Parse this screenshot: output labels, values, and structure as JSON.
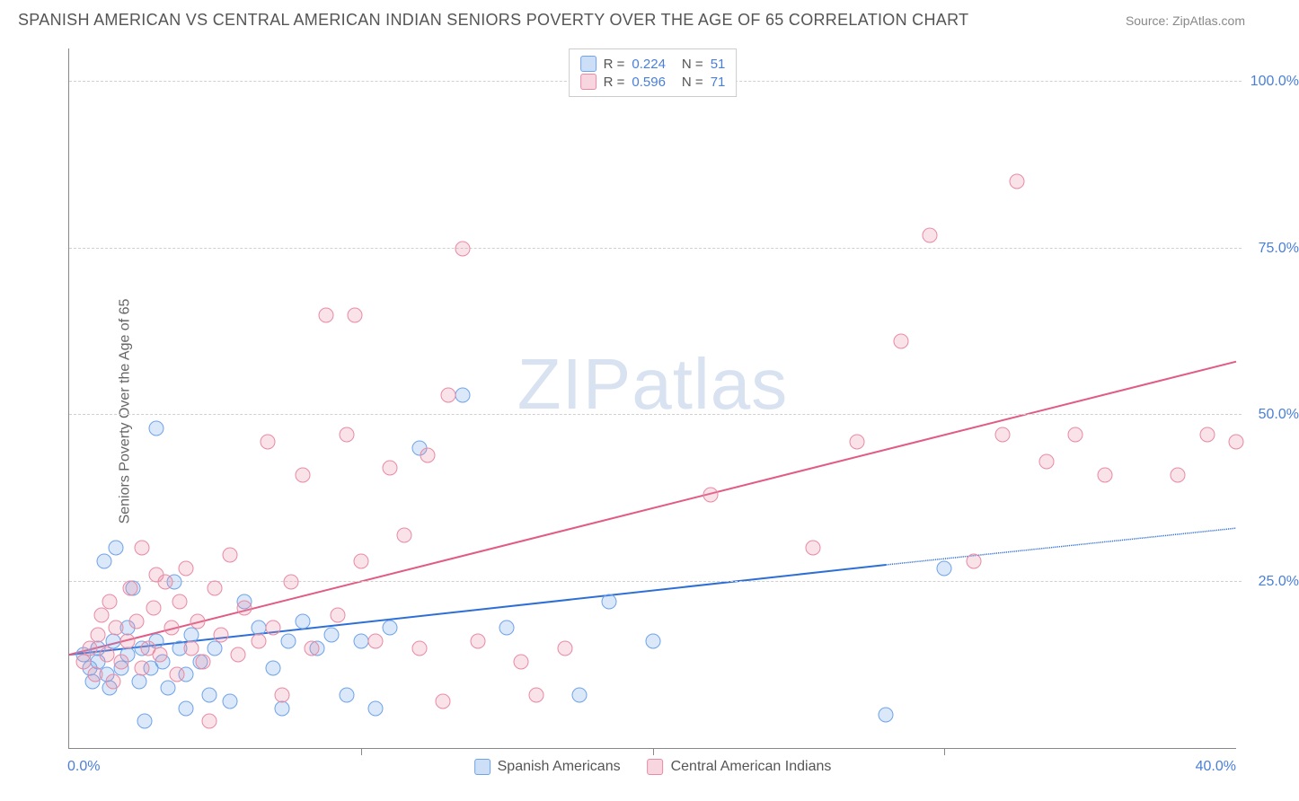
{
  "header": {
    "title": "SPANISH AMERICAN VS CENTRAL AMERICAN INDIAN SENIORS POVERTY OVER THE AGE OF 65 CORRELATION CHART",
    "source": "Source: ZipAtlas.com"
  },
  "chart": {
    "type": "scatter",
    "watermark": "ZIPatlas",
    "y_axis_label": "Seniors Poverty Over the Age of 65",
    "xlim": [
      0,
      40
    ],
    "ylim": [
      0,
      105
    ],
    "xtick_positions": [
      0,
      10,
      20,
      30,
      40
    ],
    "xtick_labels": [
      "0.0%",
      "",
      "",
      "",
      "40.0%"
    ],
    "ytick_positions": [
      25,
      50,
      75,
      100
    ],
    "ytick_labels": [
      "25.0%",
      "50.0%",
      "75.0%",
      "100.0%"
    ],
    "grid_color": "#d0d0d0",
    "background_color": "#ffffff",
    "series": [
      {
        "name": "Spanish Americans",
        "color_fill": "rgba(111,163,232,0.25)",
        "color_stroke": "#6fa3e8",
        "trend_color": "#2e6fd6",
        "R": "0.224",
        "N": "51",
        "trend": {
          "x0": 0,
          "y0": 14,
          "x_solid_end": 28,
          "y_solid_end": 27.5,
          "x1": 40,
          "y1": 33
        },
        "points": [
          [
            0.5,
            14
          ],
          [
            0.7,
            12
          ],
          [
            0.8,
            10
          ],
          [
            1.0,
            15
          ],
          [
            1.0,
            13
          ],
          [
            1.2,
            28
          ],
          [
            1.3,
            11
          ],
          [
            1.4,
            9
          ],
          [
            1.5,
            16
          ],
          [
            1.6,
            30
          ],
          [
            1.8,
            12
          ],
          [
            2.0,
            14
          ],
          [
            2.0,
            18
          ],
          [
            2.2,
            24
          ],
          [
            2.4,
            10
          ],
          [
            2.5,
            15
          ],
          [
            2.6,
            4
          ],
          [
            2.8,
            12
          ],
          [
            3.0,
            48
          ],
          [
            3.0,
            16
          ],
          [
            3.2,
            13
          ],
          [
            3.4,
            9
          ],
          [
            3.6,
            25
          ],
          [
            3.8,
            15
          ],
          [
            4.0,
            11
          ],
          [
            4.0,
            6
          ],
          [
            4.2,
            17
          ],
          [
            4.5,
            13
          ],
          [
            4.8,
            8
          ],
          [
            5.0,
            15
          ],
          [
            5.5,
            7
          ],
          [
            6.0,
            22
          ],
          [
            6.5,
            18
          ],
          [
            7.0,
            12
          ],
          [
            7.3,
            6
          ],
          [
            7.5,
            16
          ],
          [
            8.0,
            19
          ],
          [
            8.5,
            15
          ],
          [
            9.0,
            17
          ],
          [
            9.5,
            8
          ],
          [
            10.0,
            16
          ],
          [
            10.5,
            6
          ],
          [
            11.0,
            18
          ],
          [
            12.0,
            45
          ],
          [
            13.5,
            53
          ],
          [
            15.0,
            18
          ],
          [
            17.5,
            8
          ],
          [
            18.5,
            22
          ],
          [
            20.0,
            16
          ],
          [
            28.0,
            5
          ],
          [
            30.0,
            27
          ]
        ]
      },
      {
        "name": "Central American Indians",
        "color_fill": "rgba(232,138,165,0.25)",
        "color_stroke": "#e88aa5",
        "trend_color": "#e15b84",
        "R": "0.596",
        "N": "71",
        "trend": {
          "x0": 0,
          "y0": 14,
          "x_solid_end": 40,
          "y_solid_end": 58,
          "x1": 40,
          "y1": 58
        },
        "points": [
          [
            0.5,
            13
          ],
          [
            0.7,
            15
          ],
          [
            0.9,
            11
          ],
          [
            1.0,
            17
          ],
          [
            1.1,
            20
          ],
          [
            1.3,
            14
          ],
          [
            1.4,
            22
          ],
          [
            1.5,
            10
          ],
          [
            1.6,
            18
          ],
          [
            1.8,
            13
          ],
          [
            2.0,
            16
          ],
          [
            2.1,
            24
          ],
          [
            2.3,
            19
          ],
          [
            2.5,
            12
          ],
          [
            2.5,
            30
          ],
          [
            2.7,
            15
          ],
          [
            2.9,
            21
          ],
          [
            3.0,
            26
          ],
          [
            3.1,
            14
          ],
          [
            3.3,
            25
          ],
          [
            3.5,
            18
          ],
          [
            3.7,
            11
          ],
          [
            3.8,
            22
          ],
          [
            4.0,
            27
          ],
          [
            4.2,
            15
          ],
          [
            4.4,
            19
          ],
          [
            4.6,
            13
          ],
          [
            4.8,
            4
          ],
          [
            5.0,
            24
          ],
          [
            5.2,
            17
          ],
          [
            5.5,
            29
          ],
          [
            5.8,
            14
          ],
          [
            6.0,
            21
          ],
          [
            6.5,
            16
          ],
          [
            6.8,
            46
          ],
          [
            7.0,
            18
          ],
          [
            7.3,
            8
          ],
          [
            7.6,
            25
          ],
          [
            8.0,
            41
          ],
          [
            8.3,
            15
          ],
          [
            8.8,
            65
          ],
          [
            9.2,
            20
          ],
          [
            9.5,
            47
          ],
          [
            9.8,
            65
          ],
          [
            10.0,
            28
          ],
          [
            10.5,
            16
          ],
          [
            11.0,
            42
          ],
          [
            11.5,
            32
          ],
          [
            12.0,
            15
          ],
          [
            12.3,
            44
          ],
          [
            12.8,
            7
          ],
          [
            13.0,
            53
          ],
          [
            13.5,
            75
          ],
          [
            14.0,
            16
          ],
          [
            15.5,
            13
          ],
          [
            16.0,
            8
          ],
          [
            17.0,
            15
          ],
          [
            22.0,
            38
          ],
          [
            25.5,
            30
          ],
          [
            27.0,
            46
          ],
          [
            28.5,
            61
          ],
          [
            29.5,
            77
          ],
          [
            31.0,
            28
          ],
          [
            32.0,
            47
          ],
          [
            32.5,
            85
          ],
          [
            33.5,
            43
          ],
          [
            34.5,
            47
          ],
          [
            35.5,
            41
          ],
          [
            38.0,
            41
          ],
          [
            39.0,
            47
          ],
          [
            40.0,
            46
          ]
        ]
      }
    ]
  }
}
